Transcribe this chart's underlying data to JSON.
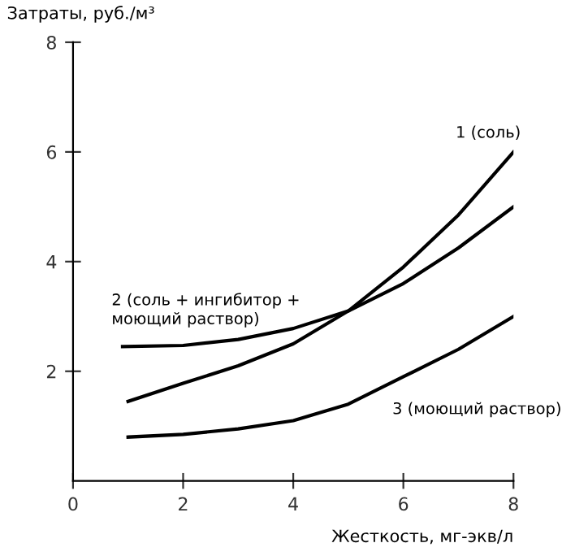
{
  "chart_data": {
    "type": "line",
    "xlabel": "Жесткость, мг-экв/л",
    "ylabel": "Затраты, руб./м³",
    "xlim": [
      0,
      8
    ],
    "ylim": [
      0,
      8
    ],
    "xticks": [
      0,
      2,
      4,
      6,
      8
    ],
    "yticks": [
      2,
      4,
      6,
      8
    ],
    "grid": false,
    "legend": false,
    "marker": "none",
    "line_style": "solid",
    "series": [
      {
        "name": "1 (соль)",
        "color": "#000000",
        "x": [
          1,
          2,
          3,
          4,
          5,
          6,
          7,
          8
        ],
        "values": [
          1.45,
          1.78,
          2.1,
          2.5,
          3.1,
          3.9,
          4.85,
          6.0
        ]
      },
      {
        "name": "2 (соль + ингибитор +\nмоющий раствор)",
        "color": "#000000",
        "x": [
          0.9,
          2,
          3,
          4,
          5,
          6,
          7,
          8
        ],
        "values": [
          2.45,
          2.47,
          2.58,
          2.78,
          3.1,
          3.6,
          4.25,
          5.0
        ]
      },
      {
        "name": "3 (моющий раствор)",
        "color": "#000000",
        "x": [
          1,
          2,
          3,
          4,
          5,
          6,
          7,
          8
        ],
        "values": [
          0.8,
          0.85,
          0.95,
          1.1,
          1.4,
          1.9,
          2.4,
          3.0
        ]
      }
    ]
  }
}
